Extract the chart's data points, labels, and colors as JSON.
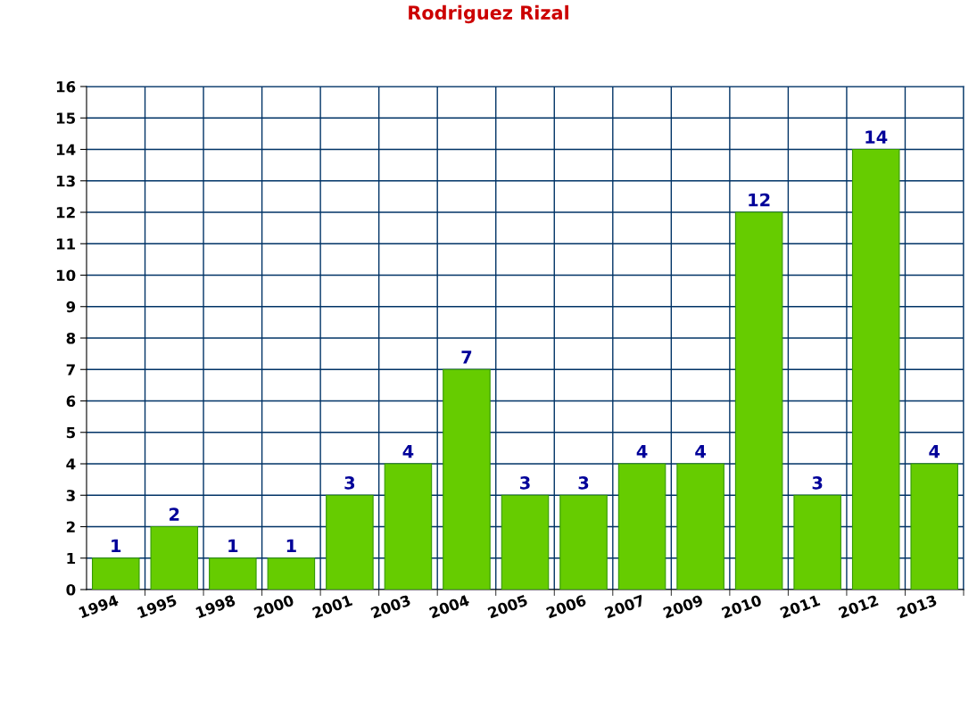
{
  "chart_data": {
    "type": "bar",
    "title": "Rodriguez Rizal",
    "categories": [
      "1994",
      "1995",
      "1998",
      "2000",
      "2001",
      "2003",
      "2004",
      "2005",
      "2006",
      "2007",
      "2009",
      "2010",
      "2011",
      "2012",
      "2013"
    ],
    "values": [
      1,
      2,
      1,
      1,
      3,
      4,
      7,
      3,
      3,
      4,
      4,
      12,
      3,
      14,
      4
    ],
    "color": "#66cc00",
    "ylim": [
      0,
      16
    ],
    "yticks": [
      0,
      1,
      2,
      3,
      4,
      5,
      6,
      7,
      8,
      9,
      10,
      11,
      12,
      13,
      14,
      15,
      16
    ],
    "grid": true,
    "data_labels": true,
    "legend": false
  }
}
